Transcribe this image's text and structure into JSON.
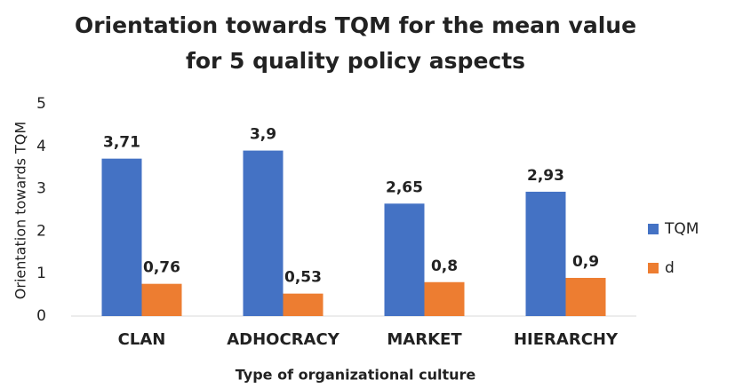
{
  "chart_data": {
    "type": "bar",
    "title": [
      "Orientation towards TQM for the mean value",
      "for  5 quality policy aspects"
    ],
    "x_label": "Type of organizational culture",
    "y_label": "Orientation towards TQM",
    "categories": [
      "CLAN",
      "ADHOCRACY",
      "MARKET",
      "HIERARCHY"
    ],
    "series": [
      {
        "name": "TQM",
        "color": "#4472c4",
        "values": [
          3.71,
          3.9,
          2.65,
          2.93
        ],
        "value_labels": [
          "3,71",
          "3,9",
          "2,65",
          "2,93"
        ]
      },
      {
        "name": "d",
        "color": "#ed7d31",
        "values": [
          0.76,
          0.53,
          0.8,
          0.9
        ],
        "value_labels": [
          "0,76",
          "0,53",
          "0,8",
          "0,9"
        ]
      }
    ],
    "ylim": [
      0,
      5
    ],
    "yticks": [
      0,
      1,
      2,
      3,
      4,
      5
    ],
    "grid": false,
    "legend": "right"
  }
}
